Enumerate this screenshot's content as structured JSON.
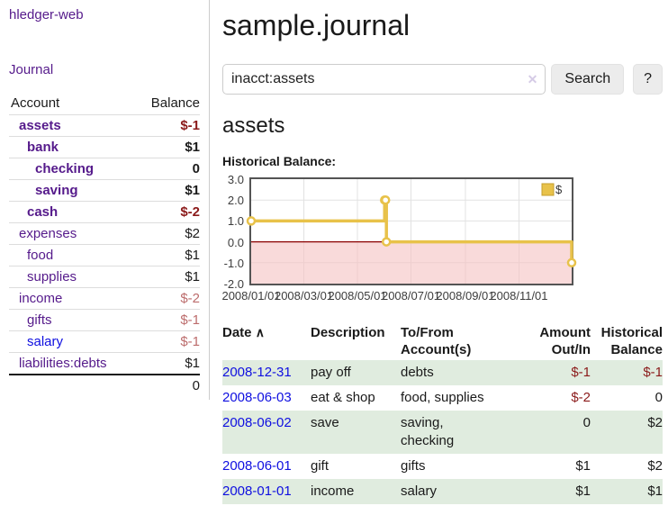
{
  "app": {
    "brand": "hledger-web",
    "nav_journal": "Journal"
  },
  "sidebar": {
    "header": {
      "account": "Account",
      "balance": "Balance"
    },
    "rows": [
      {
        "name": "assets",
        "balance": "$-1",
        "depth": 0,
        "bold": true
      },
      {
        "name": "bank",
        "balance": "$1",
        "depth": 1,
        "bold": true
      },
      {
        "name": "checking",
        "balance": "0",
        "depth": 2,
        "bold": true
      },
      {
        "name": "saving",
        "balance": "$1",
        "depth": 2,
        "bold": true
      },
      {
        "name": "cash",
        "balance": "$-2",
        "depth": 1,
        "bold": true
      },
      {
        "name": "expenses",
        "balance": "$2",
        "depth": 0,
        "bold": false
      },
      {
        "name": "food",
        "balance": "$1",
        "depth": 1,
        "bold": false
      },
      {
        "name": "supplies",
        "balance": "$1",
        "depth": 1,
        "bold": false
      },
      {
        "name": "income",
        "balance": "$-2",
        "depth": 0,
        "bold": false
      },
      {
        "name": "gifts",
        "balance": "$-1",
        "depth": 1,
        "bold": false
      },
      {
        "name": "salary",
        "balance": "$-1",
        "depth": 1,
        "bold": false,
        "link_style": "blue"
      },
      {
        "name": "liabilities:debts",
        "balance": "$1",
        "depth": 0,
        "bold": false
      }
    ],
    "total": "0"
  },
  "main": {
    "title": "sample.journal"
  },
  "search": {
    "value": "inacct:assets",
    "clear_icon": "✕",
    "button": "Search",
    "help_button": "?"
  },
  "account_page": {
    "title": "assets",
    "chart_label": "Historical Balance:"
  },
  "chart_data": {
    "type": "line",
    "step": true,
    "title": "Historical Balance",
    "series": [
      {
        "name": "$",
        "points": [
          [
            "2008-01-01",
            1
          ],
          [
            "2008-06-01",
            2
          ],
          [
            "2008-06-02",
            2
          ],
          [
            "2008-06-03",
            0
          ],
          [
            "2008-12-31",
            -1
          ]
        ]
      }
    ],
    "x_start": "2008-01-01",
    "x_end": "2008-12-31",
    "ylim": [
      -2,
      3
    ],
    "yticks": [
      "3.0",
      "2.0",
      "1.0",
      "0.0",
      "-1.0",
      "-2.0"
    ],
    "xticks": [
      {
        "date": "2008-01-01",
        "label": "2008/01/01"
      },
      {
        "date": "2008-03-01",
        "label": "2008/03/01"
      },
      {
        "date": "2008-05-01",
        "label": "2008/05/01"
      },
      {
        "date": "2008-07-01",
        "label": "2008/07/01"
      },
      {
        "date": "2008-09-01",
        "label": "2008/09/01"
      },
      {
        "date": "2008-11-01",
        "label": "2008/11/01"
      }
    ],
    "legend": {
      "label": "$",
      "position": "top-right"
    },
    "negative_region_shaded": true,
    "grid": true
  },
  "register": {
    "sort_icon": "∧",
    "columns": {
      "date": "Date",
      "description": "Description",
      "accounts": "To/From Account(s)",
      "amount": "Amount Out/In",
      "balance": "Historical Balance"
    },
    "rows": [
      {
        "date": "2008-12-31",
        "description": "pay off",
        "accounts": "debts",
        "amount": "$-1",
        "balance": "$-1"
      },
      {
        "date": "2008-06-03",
        "description": "eat & shop",
        "accounts": "food, supplies",
        "amount": "$-2",
        "balance": "0"
      },
      {
        "date": "2008-06-02",
        "description": "save",
        "accounts": "saving, checking",
        "amount": "0",
        "balance": "$2"
      },
      {
        "date": "2008-06-01",
        "description": "gift",
        "accounts": "gifts",
        "amount": "$1",
        "balance": "$2"
      },
      {
        "date": "2008-01-01",
        "description": "income",
        "accounts": "salary",
        "amount": "$1",
        "balance": "$1"
      }
    ]
  },
  "colors": {
    "accent_purple": "#551a8b",
    "link_blue": "#0f0fe0",
    "negative_strong": "#8b1a1a",
    "negative_soft": "#bc6c6c",
    "row_green": "#e0ecdf",
    "chart_line": "#e8c24a",
    "chart_line_edge": "#c59f2d",
    "chart_negative_fill": "#f6c4c4",
    "chart_zero_line": "#8b0000",
    "chart_border": "#545454",
    "chart_grid": "#e2e2e2"
  }
}
